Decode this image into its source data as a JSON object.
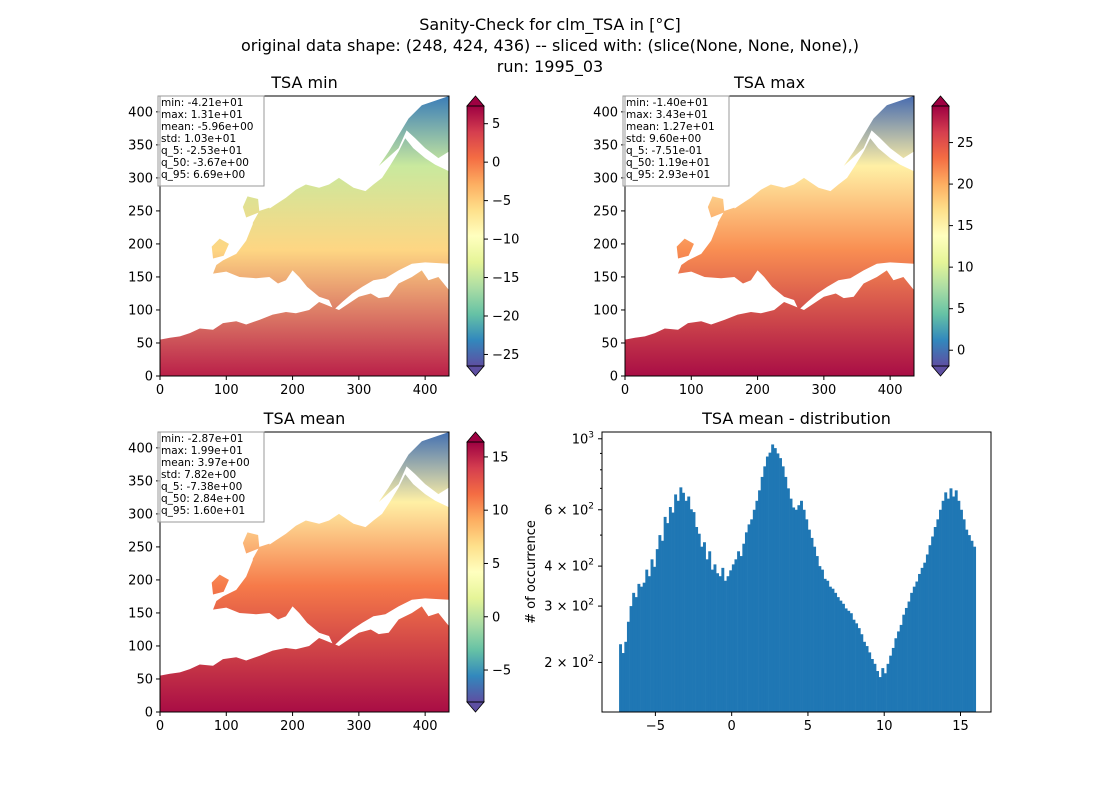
{
  "figure": {
    "title_lines": [
      "Sanity-Check for clm_TSA in [°C]",
      "original data shape: (248, 424, 436) -- sliced with: (slice(None, None, None),)",
      "run: 1995_03"
    ]
  },
  "chart_data": [
    {
      "type": "heatmap",
      "title": "TSA min",
      "xlim": [
        0,
        436
      ],
      "ylim": [
        0,
        424
      ],
      "x_ticks": [
        0,
        100,
        200,
        300,
        400
      ],
      "y_ticks": [
        0,
        50,
        100,
        150,
        200,
        250,
        300,
        350,
        400
      ],
      "colormap": "Spectral_r",
      "colorbar": {
        "vmin": -26.5,
        "vmax": 7.3,
        "ticks": [
          5,
          0,
          -5,
          -10,
          -15,
          -20,
          -25
        ],
        "tick_labels": [
          "5",
          "0",
          "−5",
          "−10",
          "−15",
          "−20",
          "−25"
        ],
        "extend": "both"
      },
      "stats": [
        "min: -4.21e+01",
        "max: 1.31e+01",
        "mean: -5.96e+00",
        "std: 1.03e+01",
        "q_5: -2.53e+01",
        "q_50: -3.67e+00",
        "q_95: 6.69e+00"
      ]
    },
    {
      "type": "heatmap",
      "title": "TSA max",
      "xlim": [
        0,
        436
      ],
      "ylim": [
        0,
        424
      ],
      "x_ticks": [
        0,
        100,
        200,
        300,
        400
      ],
      "y_ticks": [
        0,
        50,
        100,
        150,
        200,
        250,
        300,
        350,
        400
      ],
      "colormap": "Spectral_r",
      "colorbar": {
        "vmin": -1.9,
        "vmax": 29.4,
        "ticks": [
          25,
          20,
          15,
          10,
          5,
          0
        ],
        "tick_labels": [
          "25",
          "20",
          "15",
          "10",
          "5",
          "0"
        ],
        "extend": "both"
      },
      "stats": [
        "min: -1.40e+01",
        "max: 3.43e+01",
        "mean: 1.27e+01",
        "std: 9.60e+00",
        "q_5: -7.51e-01",
        "q_50: 1.19e+01",
        "q_95: 2.93e+01"
      ]
    },
    {
      "type": "heatmap",
      "title": "TSA mean",
      "xlim": [
        0,
        436
      ],
      "ylim": [
        0,
        424
      ],
      "x_ticks": [
        0,
        100,
        200,
        300,
        400
      ],
      "y_ticks": [
        0,
        50,
        100,
        150,
        200,
        250,
        300,
        350,
        400
      ],
      "colormap": "Spectral_r",
      "colorbar": {
        "vmin": -8.0,
        "vmax": 16.4,
        "ticks": [
          15,
          10,
          5,
          0,
          -5
        ],
        "tick_labels": [
          "15",
          "10",
          "5",
          "0",
          "−5"
        ],
        "extend": "both"
      },
      "stats": [
        "min: -2.87e+01",
        "max: 1.99e+01",
        "mean: 3.97e+00",
        "std: 7.82e+00",
        "q_5: -7.38e+00",
        "q_50: 2.84e+00",
        "q_95: 1.60e+01"
      ]
    },
    {
      "type": "bar",
      "title": "TSA mean - distribution",
      "xlabel": "",
      "ylabel": "# of occurrence",
      "xlim": [
        -8.5,
        17.0
      ],
      "ylog": true,
      "ylim": [
        140,
        1050
      ],
      "x_ticks": [
        -5,
        0,
        5,
        10,
        15
      ],
      "x_tick_labels": [
        "−5",
        "0",
        "5",
        "10",
        "15"
      ],
      "y_ticks": [
        200,
        300,
        400,
        600,
        1000
      ],
      "y_tick_labels": [
        [
          "2",
          "10",
          "2"
        ],
        [
          "3",
          "10",
          "2"
        ],
        [
          "4",
          "10",
          "2"
        ],
        [
          "6",
          "10",
          "2"
        ],
        [
          "",
          "10",
          "3"
        ]
      ],
      "color": "#1f77b4",
      "bins_start": -7.38,
      "bins_end": 16.0,
      "counts": [
        228,
        214,
        232,
        268,
        300,
        330,
        320,
        352,
        345,
        355,
        390,
        372,
        420,
        398,
        452,
        500,
        480,
        570,
        545,
        612,
        588,
        670,
        640,
        705,
        678,
        640,
        660,
        602,
        590,
        530,
        505,
        460,
        475,
        420,
        445,
        390,
        405,
        380,
        372,
        395,
        360,
        372,
        388,
        405,
        420,
        445,
        430,
        470,
        510,
        540,
        560,
        600,
        640,
        690,
        760,
        820,
        880,
        905,
        960,
        935,
        900,
        870,
        820,
        760,
        700,
        650,
        610,
        600,
        620,
        640,
        600,
        560,
        520,
        490,
        460,
        430,
        400,
        390,
        365,
        360,
        345,
        340,
        330,
        320,
        312,
        305,
        295,
        290,
        285,
        272,
        265,
        256,
        245,
        232,
        225,
        215,
        205,
        198,
        188,
        180,
        192,
        185,
        198,
        210,
        222,
        238,
        250,
        262,
        282,
        296,
        310,
        330,
        345,
        358,
        378,
        395,
        410,
        435,
        465,
        495,
        530,
        560,
        600,
        640,
        680,
        650,
        700,
        660,
        690,
        640,
        600,
        560,
        520,
        500,
        480,
        460
      ]
    }
  ]
}
